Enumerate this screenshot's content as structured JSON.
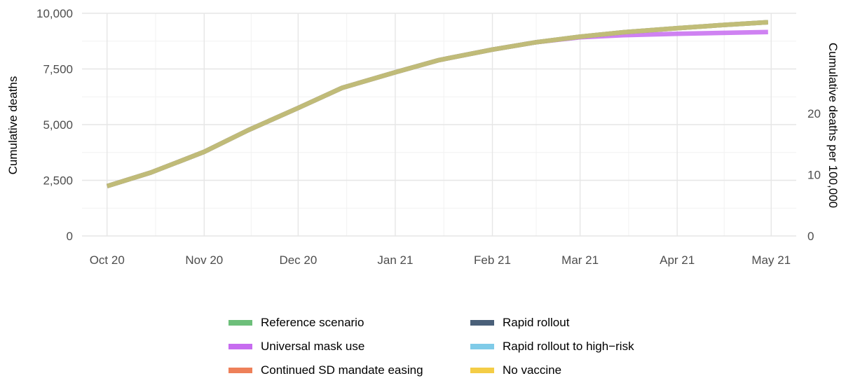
{
  "chart_data": {
    "type": "line",
    "xlabel": "",
    "ylabel": "Cumulative deaths",
    "y2label": "Cumulative deaths per 100,000",
    "x_ticks": [
      "2020-10-01",
      "2020-11-01",
      "2020-12-01",
      "2021-01-01",
      "2021-02-01",
      "2021-03-01",
      "2021-04-01",
      "2021-05-01"
    ],
    "x_tick_labels": [
      "Oct 20",
      "Nov 20",
      "Dec 20",
      "Jan 21",
      "Feb 21",
      "Mar 21",
      "Apr 21",
      "May 21"
    ],
    "xlim": [
      "2020-09-23",
      "2021-05-09"
    ],
    "y_ticks": [
      0,
      2500,
      5000,
      7500,
      10000
    ],
    "y_tick_labels": [
      "0",
      "2,500",
      "5,000",
      "7,500",
      "10,000"
    ],
    "ylim": [
      0,
      10000
    ],
    "y2_ticks": [
      0,
      10,
      20
    ],
    "y2_tick_labels": [
      "0",
      "10",
      "20"
    ],
    "y2lim": [
      0,
      36.3
    ],
    "grid": true,
    "legend_position": "bottom",
    "series": [
      {
        "name": "Reference scenario",
        "color": "#6dbf7a",
        "x": [
          "2020-10-01",
          "2020-10-15",
          "2020-11-01",
          "2020-11-15",
          "2020-12-01",
          "2020-12-15",
          "2021-01-01",
          "2021-01-15",
          "2021-02-01",
          "2021-02-15",
          "2021-03-01",
          "2021-03-15",
          "2021-04-01",
          "2021-04-15",
          "2021-04-30"
        ],
        "values": [
          2240,
          2850,
          3780,
          4750,
          5750,
          6650,
          7350,
          7900,
          8370,
          8700,
          8950,
          9150,
          9330,
          9470,
          9600
        ]
      },
      {
        "name": "Universal mask use",
        "color": "#c76cf0",
        "x": [
          "2020-10-01",
          "2020-10-15",
          "2020-11-01",
          "2020-11-15",
          "2020-12-01",
          "2020-12-15",
          "2021-01-01",
          "2021-01-15",
          "2021-02-01",
          "2021-02-15",
          "2021-03-01",
          "2021-03-15",
          "2021-04-01",
          "2021-04-15",
          "2021-04-30"
        ],
        "values": [
          2240,
          2850,
          3780,
          4750,
          5750,
          6650,
          7350,
          7900,
          8370,
          8700,
          8920,
          9020,
          9080,
          9120,
          9160
        ]
      },
      {
        "name": "Continued SD mandate easing",
        "color": "#ee8059",
        "x": [
          "2020-10-01",
          "2020-10-15",
          "2020-11-01",
          "2020-11-15",
          "2020-12-01",
          "2020-12-15",
          "2021-01-01",
          "2021-01-15",
          "2021-02-01",
          "2021-02-15",
          "2021-03-01",
          "2021-03-15",
          "2021-04-01",
          "2021-04-15",
          "2021-04-30"
        ],
        "values": [
          2240,
          2850,
          3780,
          4750,
          5750,
          6650,
          7350,
          7900,
          8370,
          8700,
          8950,
          9150,
          9330,
          9470,
          9600
        ]
      },
      {
        "name": "Rapid rollout",
        "color": "#4a6079",
        "x": [
          "2020-10-01",
          "2020-10-15",
          "2020-11-01",
          "2020-11-15",
          "2020-12-01",
          "2020-12-15",
          "2021-01-01",
          "2021-01-15",
          "2021-02-01",
          "2021-02-15",
          "2021-03-01",
          "2021-03-15",
          "2021-04-01",
          "2021-04-15",
          "2021-04-30"
        ],
        "values": [
          2240,
          2850,
          3780,
          4750,
          5750,
          6650,
          7350,
          7900,
          8370,
          8700,
          8950,
          9150,
          9330,
          9470,
          9600
        ]
      },
      {
        "name": "Rapid rollout to high−risk",
        "color": "#7fcbe8",
        "x": [
          "2020-10-01",
          "2020-10-15",
          "2020-11-01",
          "2020-11-15",
          "2020-12-01",
          "2020-12-15",
          "2021-01-01",
          "2021-01-15",
          "2021-02-01",
          "2021-02-15",
          "2021-03-01",
          "2021-03-15",
          "2021-04-01",
          "2021-04-15",
          "2021-04-30"
        ],
        "values": [
          2240,
          2850,
          3780,
          4750,
          5750,
          6650,
          7350,
          7900,
          8370,
          8700,
          8950,
          9150,
          9330,
          9470,
          9600
        ]
      },
      {
        "name": "No vaccine",
        "color": "#f4cd46",
        "x": [
          "2020-10-01",
          "2020-10-15",
          "2020-11-01",
          "2020-11-15",
          "2020-12-01",
          "2020-12-15",
          "2021-01-01",
          "2021-01-15",
          "2021-02-01",
          "2021-02-15",
          "2021-03-01",
          "2021-03-15",
          "2021-04-01",
          "2021-04-15",
          "2021-04-30"
        ],
        "values": [
          2240,
          2850,
          3780,
          4750,
          5750,
          6650,
          7350,
          7900,
          8370,
          8700,
          8950,
          9150,
          9330,
          9470,
          9600
        ]
      }
    ]
  }
}
